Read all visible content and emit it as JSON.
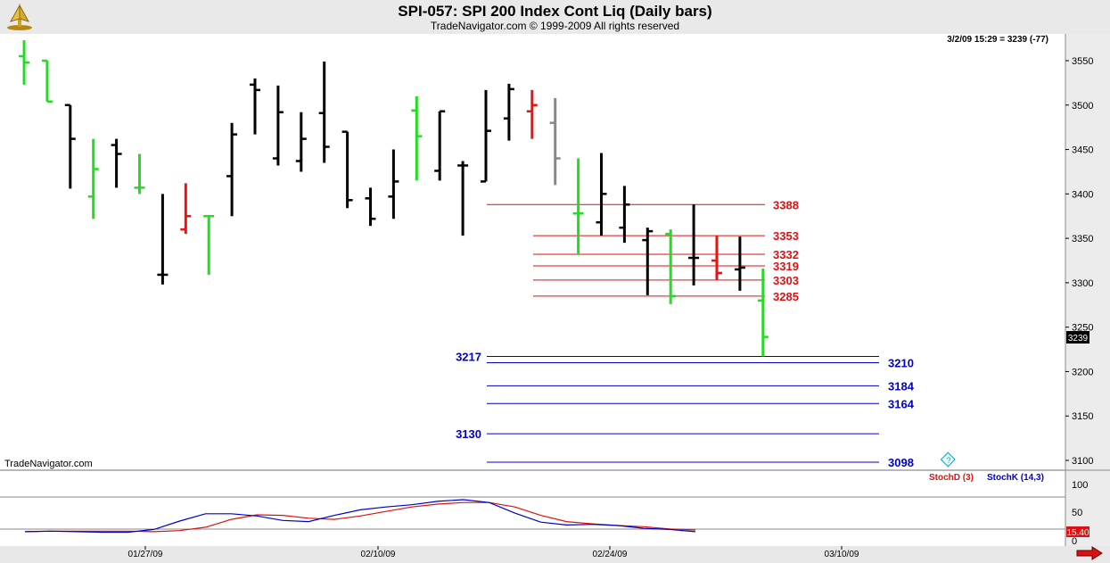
{
  "header": {
    "title": "SPI-057:  SPI 200 Index Cont Liq  (Daily bars)",
    "subtitle": "TradeNavigator.com © 1999-2009 All rights reserved"
  },
  "status_readout": "3/2/09 15:29 = 3239 (-77)",
  "watermark": "TradeNavigator.com",
  "last_price_label": "3239",
  "help_glyph": "?",
  "colors": {
    "up_bar": "#22dd22",
    "down_bar": "#ee1111",
    "neutral_bar": "#000000",
    "gray_bar": "#888888",
    "resistance": "#dd1111",
    "support": "#0000cc",
    "stochK": "#0000cc",
    "stochD": "#dd1111",
    "background": "#ffffff"
  },
  "chart_data": [
    {
      "type": "ohlc",
      "ylim": [
        3075,
        3575
      ],
      "y_ticks": [
        3100,
        3150,
        3200,
        3250,
        3300,
        3350,
        3400,
        3450,
        3500,
        3550
      ],
      "x_ticks": [
        "01/27/09",
        "02/10/09",
        "02/24/09",
        "03/10/09"
      ],
      "bars": [
        {
          "o": 3555,
          "h": 3573,
          "l": 3523,
          "c": 3548,
          "color": "green"
        },
        {
          "o": 3550,
          "h": 3550,
          "l": 3504,
          "c": 3504,
          "color": "green"
        },
        {
          "o": 3500,
          "h": 3500,
          "l": 3406,
          "c": 3462,
          "color": "black"
        },
        {
          "o": 3397,
          "h": 3462,
          "l": 3372,
          "c": 3428,
          "color": "green"
        },
        {
          "o": 3455,
          "h": 3462,
          "l": 3407,
          "c": 3445,
          "color": "black"
        },
        {
          "o": 3407,
          "h": 3445,
          "l": 3400,
          "c": 3407,
          "color": "green"
        },
        {
          "o": 3309,
          "h": 3400,
          "l": 3298,
          "c": 3309,
          "color": "black"
        },
        {
          "o": 3360,
          "h": 3412,
          "l": 3355,
          "c": 3375,
          "color": "red"
        },
        {
          "o": 3375,
          "h": 3375,
          "l": 3309,
          "c": 3375,
          "color": "green"
        },
        {
          "o": 3420,
          "h": 3480,
          "l": 3375,
          "c": 3467,
          "color": "black"
        },
        {
          "o": 3523,
          "h": 3530,
          "l": 3467,
          "c": 3517,
          "color": "black"
        },
        {
          "o": 3440,
          "h": 3522,
          "l": 3432,
          "c": 3492,
          "color": "black"
        },
        {
          "o": 3437,
          "h": 3492,
          "l": 3425,
          "c": 3462,
          "color": "black"
        },
        {
          "o": 3491,
          "h": 3549,
          "l": 3435,
          "c": 3453,
          "color": "black"
        },
        {
          "o": 3470,
          "h": 3470,
          "l": 3384,
          "c": 3393,
          "color": "black"
        },
        {
          "o": 3395,
          "h": 3407,
          "l": 3364,
          "c": 3372,
          "color": "black"
        },
        {
          "o": 3397,
          "h": 3450,
          "l": 3372,
          "c": 3414,
          "color": "black"
        },
        {
          "o": 3494,
          "h": 3510,
          "l": 3415,
          "c": 3465,
          "color": "green"
        },
        {
          "o": 3426,
          "h": 3493,
          "l": 3415,
          "c": 3493,
          "color": "black"
        },
        {
          "o": 3432,
          "h": 3437,
          "l": 3353,
          "c": 3432,
          "color": "black"
        },
        {
          "o": 3414,
          "h": 3517,
          "l": 3414,
          "c": 3471,
          "color": "black"
        },
        {
          "o": 3485,
          "h": 3524,
          "l": 3460,
          "c": 3518,
          "color": "black"
        },
        {
          "o": 3493,
          "h": 3517,
          "l": 3462,
          "c": 3500,
          "color": "red"
        },
        {
          "o": 3480,
          "h": 3508,
          "l": 3410,
          "c": 3440,
          "color": "gray"
        },
        {
          "o": 3378,
          "h": 3440,
          "l": 3332,
          "c": 3378,
          "color": "green"
        },
        {
          "o": 3368,
          "h": 3446,
          "l": 3353,
          "c": 3400,
          "color": "black"
        },
        {
          "o": 3362,
          "h": 3409,
          "l": 3345,
          "c": 3388,
          "color": "black"
        },
        {
          "o": 3348,
          "h": 3362,
          "l": 3286,
          "c": 3358,
          "color": "black"
        },
        {
          "o": 3355,
          "h": 3360,
          "l": 3276,
          "c": 3285,
          "color": "green"
        },
        {
          "o": 3328,
          "h": 3388,
          "l": 3297,
          "c": 3328,
          "color": "black"
        },
        {
          "o": 3325,
          "h": 3353,
          "l": 3303,
          "c": 3311,
          "color": "red"
        },
        {
          "o": 3315,
          "h": 3352,
          "l": 3291,
          "c": 3317,
          "color": "black"
        },
        {
          "o": 3280,
          "h": 3316,
          "l": 3217,
          "c": 3239,
          "color": "green"
        }
      ],
      "resistance_levels": [
        3388,
        3353,
        3332,
        3319,
        3303,
        3285
      ],
      "support_levels_left_labeled": [
        3217,
        3130
      ],
      "support_levels_right_labeled": [
        3210,
        3184,
        3164,
        3098
      ]
    },
    {
      "type": "line",
      "ylim": [
        0,
        100
      ],
      "y_ticks": [
        0,
        50,
        100
      ],
      "current_value_label": "15.40",
      "series": [
        {
          "name": "StochD (3)",
          "color": "red",
          "values": [
            16,
            17,
            17,
            17,
            17,
            16,
            18,
            24,
            38,
            46,
            45,
            40,
            38,
            44,
            52,
            60,
            65,
            68,
            68,
            60,
            45,
            34,
            30,
            27,
            25,
            21,
            19
          ]
        },
        {
          "name": "StochK (14,3)",
          "color": "blue",
          "values": [
            16,
            17,
            16,
            15,
            15,
            20,
            35,
            48,
            48,
            44,
            36,
            34,
            45,
            55,
            60,
            64,
            70,
            73,
            68,
            49,
            33,
            28,
            29,
            27,
            22,
            20,
            16
          ]
        }
      ]
    }
  ]
}
